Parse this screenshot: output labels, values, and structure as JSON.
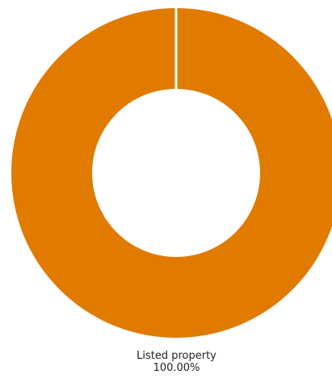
{
  "chart_data": {
    "type": "pie",
    "donut": true,
    "slices": [
      {
        "label": "Listed property",
        "value": 100.0,
        "percent_label": "100.00%",
        "color": "#E07B00"
      }
    ]
  }
}
